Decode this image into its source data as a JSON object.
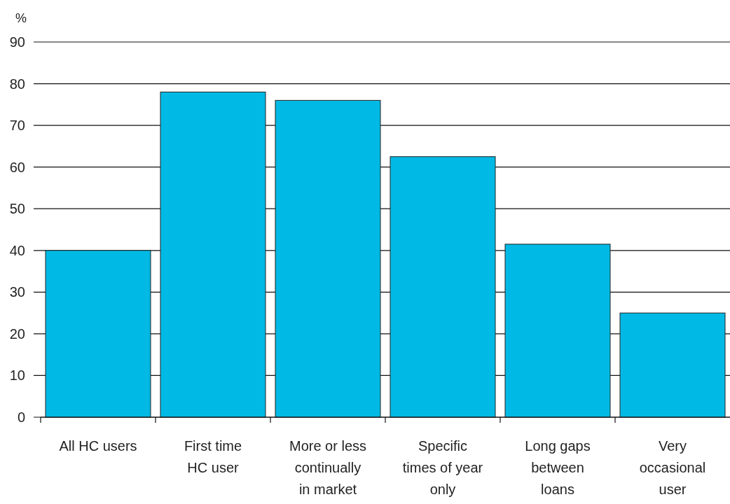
{
  "chart_data": {
    "type": "bar",
    "ylabel": "%",
    "categories": [
      "All HC users",
      "First time\nHC user",
      "More or less\ncontinually\nin market",
      "Specific\ntimes of year\nonly",
      "Long gaps\nbetween\nloans",
      "Very\noccasional\nuser"
    ],
    "values": [
      40,
      78,
      76,
      62.5,
      41.5,
      25
    ],
    "color": "#00b9e4",
    "ylim": [
      0,
      90
    ],
    "yticks": [
      0,
      10,
      20,
      30,
      40,
      50,
      60,
      70,
      80,
      90
    ],
    "grid": "y"
  }
}
